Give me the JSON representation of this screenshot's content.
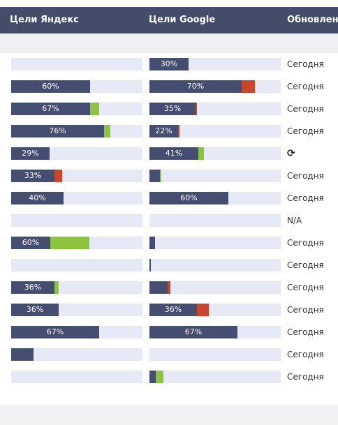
{
  "header": {
    "yandex": "Цели Яндекс",
    "google": "Цели Google",
    "updated": "Обновлено"
  },
  "colors": {
    "header_bg": "#434c68",
    "bar_fill": "#434e70",
    "bar_track": "#e7eaf6",
    "increase": "#8dc43e",
    "decrease": "#c9462c"
  },
  "rows": [
    {
      "yandex": {
        "value": 0,
        "extra": 0,
        "extra_type": "",
        "label": ""
      },
      "google": {
        "value": 30,
        "extra": 0,
        "extra_type": "",
        "label": "30%"
      },
      "updated": "Сегодня"
    },
    {
      "yandex": {
        "value": 60,
        "extra": 0,
        "extra_type": "",
        "label": "60%"
      },
      "google": {
        "value": 70,
        "extra": 10,
        "extra_type": "red",
        "label": "70%"
      },
      "updated": "Сегодня"
    },
    {
      "yandex": {
        "value": 60,
        "extra": 7,
        "extra_type": "green",
        "label": "67%"
      },
      "google": {
        "value": 35,
        "extra": 1,
        "extra_type": "red",
        "label": "35%"
      },
      "updated": "Сегодня"
    },
    {
      "yandex": {
        "value": 71,
        "extra": 5,
        "extra_type": "green",
        "label": "76%"
      },
      "google": {
        "value": 22,
        "extra": 1,
        "extra_type": "red",
        "label": "22%"
      },
      "updated": "Сегодня"
    },
    {
      "yandex": {
        "value": 29,
        "extra": 0,
        "extra_type": "",
        "label": "29%"
      },
      "google": {
        "value": 37,
        "extra": 4,
        "extra_type": "green",
        "label": "41%"
      },
      "updated": "",
      "updated_icon": "refresh-icon"
    },
    {
      "yandex": {
        "value": 33,
        "extra": 6,
        "extra_type": "red",
        "label": "33%"
      },
      "google": {
        "value": 8,
        "extra": 1,
        "extra_type": "green",
        "label": ""
      },
      "updated": "Сегодня"
    },
    {
      "yandex": {
        "value": 40,
        "extra": 0,
        "extra_type": "",
        "label": "40%"
      },
      "google": {
        "value": 60,
        "extra": 0,
        "extra_type": "",
        "label": "60%"
      },
      "updated": "Сегодня"
    },
    {
      "yandex": {
        "value": 0,
        "extra": 0,
        "extra_type": "",
        "label": ""
      },
      "google": {
        "value": 0,
        "extra": 0,
        "extra_type": "",
        "label": ""
      },
      "updated": "N/A"
    },
    {
      "yandex": {
        "value": 30,
        "extra": 30,
        "extra_type": "green",
        "label": "60%"
      },
      "google": {
        "value": 4,
        "extra": 0,
        "extra_type": "",
        "label": ""
      },
      "updated": "Сегодня"
    },
    {
      "yandex": {
        "value": 0,
        "extra": 0,
        "extra_type": "",
        "label": ""
      },
      "google": {
        "value": 1,
        "extra": 0,
        "extra_type": "",
        "label": ""
      },
      "updated": "Сегодня"
    },
    {
      "yandex": {
        "value": 33,
        "extra": 3,
        "extra_type": "green",
        "label": "36%"
      },
      "google": {
        "value": 14,
        "extra": 2,
        "extra_type": "red",
        "label": ""
      },
      "updated": "Сегодня"
    },
    {
      "yandex": {
        "value": 36,
        "extra": 0,
        "extra_type": "",
        "label": "36%"
      },
      "google": {
        "value": 36,
        "extra": 9,
        "extra_type": "red",
        "label": "36%"
      },
      "updated": "Сегодня"
    },
    {
      "yandex": {
        "value": 67,
        "extra": 0,
        "extra_type": "",
        "label": "67%"
      },
      "google": {
        "value": 67,
        "extra": 0,
        "extra_type": "",
        "label": "67%"
      },
      "updated": "Сегодня"
    },
    {
      "yandex": {
        "value": 17,
        "extra": 0,
        "extra_type": "",
        "label": ""
      },
      "google": {
        "value": 0,
        "extra": 0,
        "extra_type": "",
        "label": ""
      },
      "updated": "Сегодня"
    },
    {
      "yandex": {
        "value": 0,
        "extra": 0,
        "extra_type": "",
        "label": ""
      },
      "google": {
        "value": 5,
        "extra": 6,
        "extra_type": "green",
        "label": ""
      },
      "updated": "Сегодня"
    }
  ]
}
